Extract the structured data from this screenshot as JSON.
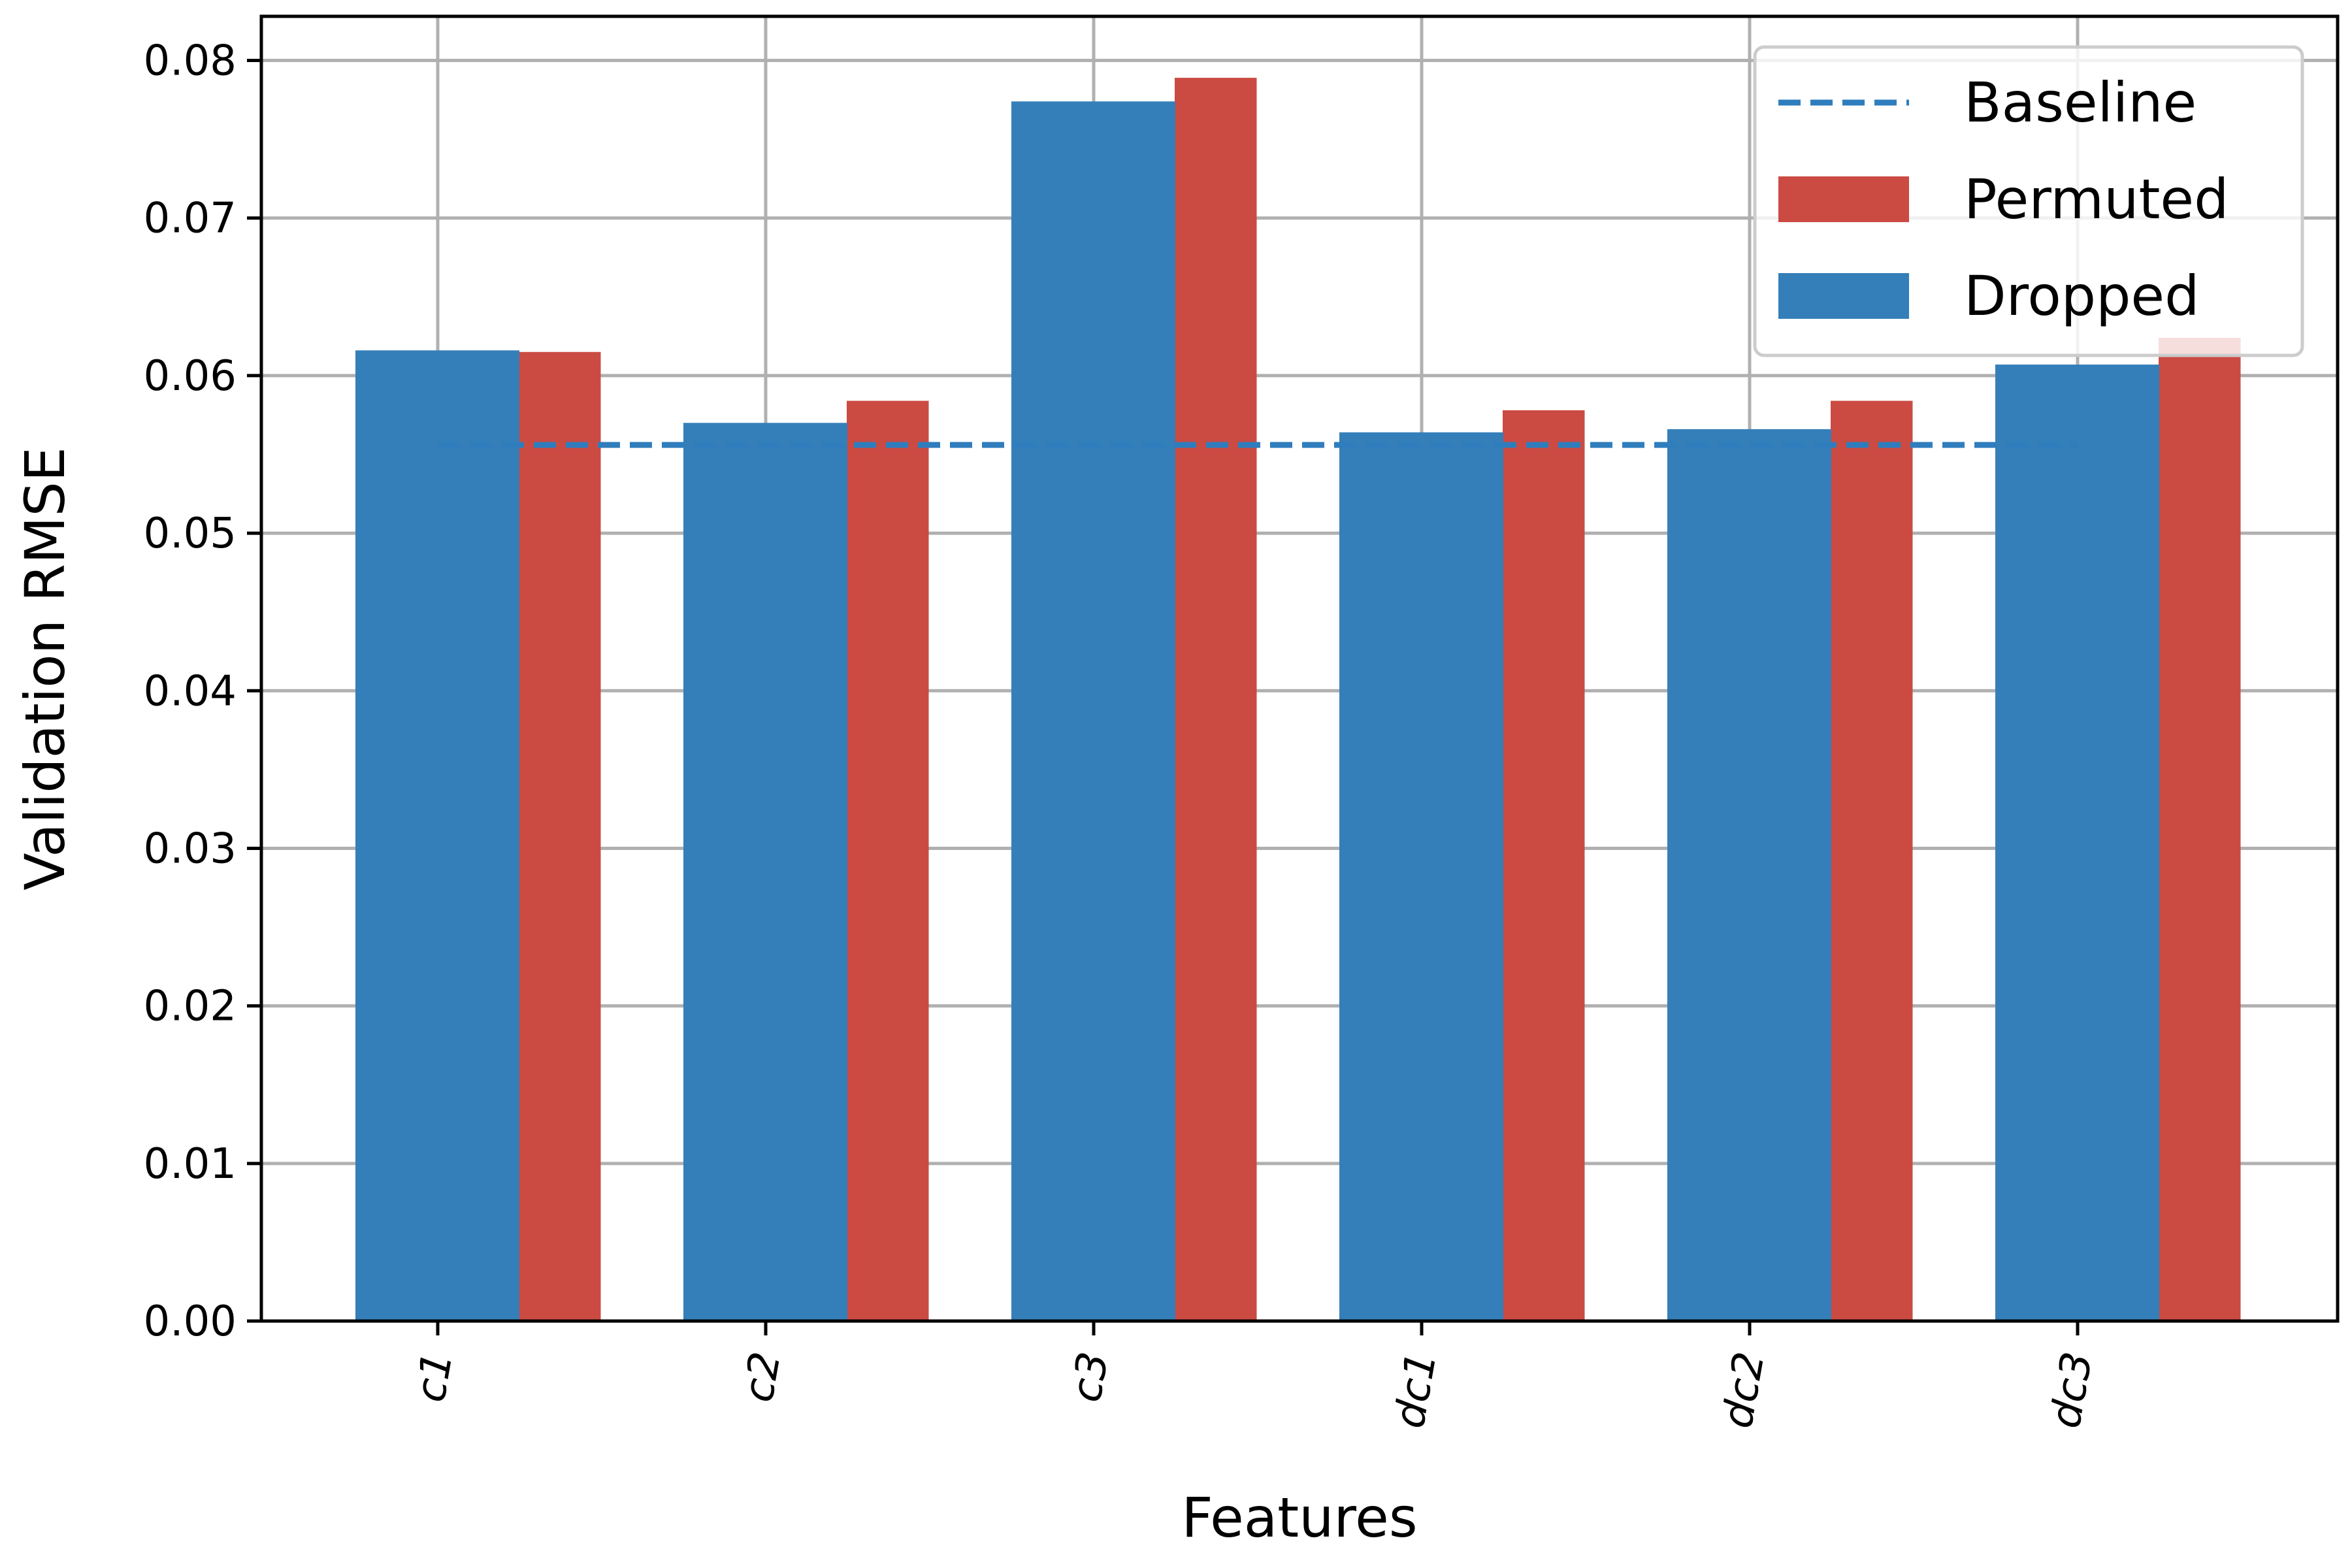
{
  "chart_data": {
    "type": "bar",
    "xlabel": "Features",
    "ylabel": "Validation RMSE",
    "categories": [
      "c1",
      "c2",
      "c3",
      "dc1",
      "dc2",
      "dc3"
    ],
    "ylim": [
      0,
      0.0828
    ],
    "yticks": [
      0.0,
      0.01,
      0.02,
      0.03,
      0.04,
      0.05,
      0.06,
      0.07,
      0.08
    ],
    "ytick_labels": [
      "0.00",
      "0.01",
      "0.02",
      "0.03",
      "0.04",
      "0.05",
      "0.06",
      "0.07",
      "0.08"
    ],
    "series": [
      {
        "name": "Dropped",
        "color": "#347fb9",
        "values": [
          0.0616,
          0.057,
          0.0774,
          0.0564,
          0.0566,
          0.0607
        ]
      },
      {
        "name": "Permuted",
        "color": "#cb4b43",
        "values": [
          0.0615,
          0.0584,
          0.0789,
          0.0578,
          0.0584,
          0.0624
        ]
      }
    ],
    "baseline": {
      "name": "Baseline",
      "color": "#2f7dbd",
      "value": 0.0556,
      "style": "dashed"
    },
    "grid": true,
    "legend_position": "top-right",
    "legend_order": [
      "Baseline",
      "Permuted",
      "Dropped"
    ]
  }
}
